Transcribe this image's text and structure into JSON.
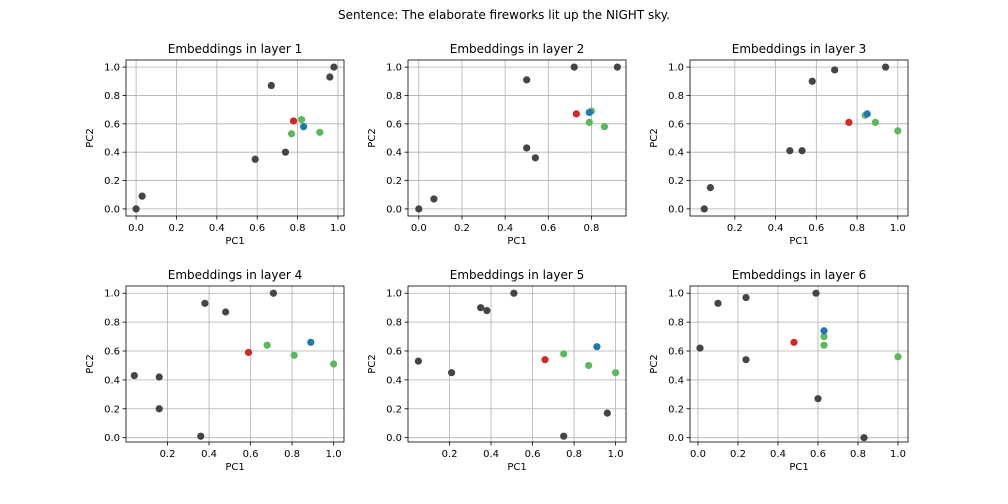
{
  "suptitle": "Sentence: The elaborate fireworks lit up the NIGHT sky.",
  "colors": {
    "gray": "#454545",
    "red": "#d62728",
    "blue": "#1f77b4",
    "green": "#5cb85c",
    "grid": "#b0b0b0",
    "axes": "#000000"
  },
  "chart_data": [
    {
      "type": "scatter",
      "title": "Embeddings in layer 1",
      "xlabel": "PC1",
      "ylabel": "PC2",
      "xlim": [
        -0.05,
        1.03
      ],
      "ylim": [
        -0.05,
        1.05
      ],
      "xticks": [
        "0.0",
        "0.2",
        "0.4",
        "0.6",
        "0.8",
        "1.0"
      ],
      "xtick_values": [
        0,
        0.2,
        0.4,
        0.6,
        0.8,
        1.0
      ],
      "yticks": [
        "0.0",
        "0.2",
        "0.4",
        "0.6",
        "0.8",
        "1.0"
      ],
      "ytick_values": [
        0,
        0.2,
        0.4,
        0.6,
        0.8,
        1.0
      ],
      "grid": true,
      "points": [
        {
          "x": 0.0,
          "y": 0.0,
          "color": "gray"
        },
        {
          "x": 0.03,
          "y": 0.09,
          "color": "gray"
        },
        {
          "x": 0.59,
          "y": 0.35,
          "color": "gray"
        },
        {
          "x": 0.67,
          "y": 0.87,
          "color": "gray"
        },
        {
          "x": 0.74,
          "y": 0.4,
          "color": "gray"
        },
        {
          "x": 0.96,
          "y": 0.93,
          "color": "gray"
        },
        {
          "x": 0.98,
          "y": 1.0,
          "color": "gray"
        },
        {
          "x": 0.78,
          "y": 0.62,
          "color": "red"
        },
        {
          "x": 0.77,
          "y": 0.53,
          "color": "green"
        },
        {
          "x": 0.82,
          "y": 0.63,
          "color": "green"
        },
        {
          "x": 0.91,
          "y": 0.54,
          "color": "green"
        },
        {
          "x": 0.83,
          "y": 0.58,
          "color": "blue"
        }
      ]
    },
    {
      "type": "scatter",
      "title": "Embeddings in layer 2",
      "xlabel": "PC1",
      "ylabel": "PC2",
      "xlim": [
        -0.05,
        0.96
      ],
      "ylim": [
        -0.05,
        1.05
      ],
      "xticks": [
        "0.0",
        "0.2",
        "0.4",
        "0.6",
        "0.8"
      ],
      "xtick_values": [
        0,
        0.2,
        0.4,
        0.6,
        0.8
      ],
      "yticks": [
        "0.0",
        "0.2",
        "0.4",
        "0.6",
        "0.8",
        "1.0"
      ],
      "ytick_values": [
        0,
        0.2,
        0.4,
        0.6,
        0.8,
        1.0
      ],
      "grid": true,
      "points": [
        {
          "x": 0.0,
          "y": 0.0,
          "color": "gray"
        },
        {
          "x": 0.07,
          "y": 0.07,
          "color": "gray"
        },
        {
          "x": 0.5,
          "y": 0.43,
          "color": "gray"
        },
        {
          "x": 0.54,
          "y": 0.36,
          "color": "gray"
        },
        {
          "x": 0.5,
          "y": 0.91,
          "color": "gray"
        },
        {
          "x": 0.72,
          "y": 1.0,
          "color": "gray"
        },
        {
          "x": 0.92,
          "y": 1.0,
          "color": "gray"
        },
        {
          "x": 0.73,
          "y": 0.67,
          "color": "red"
        },
        {
          "x": 0.79,
          "y": 0.61,
          "color": "green"
        },
        {
          "x": 0.86,
          "y": 0.58,
          "color": "green"
        },
        {
          "x": 0.8,
          "y": 0.69,
          "color": "green"
        },
        {
          "x": 0.79,
          "y": 0.68,
          "color": "blue"
        }
      ]
    },
    {
      "type": "scatter",
      "title": "Embeddings in layer 3",
      "xlabel": "PC1",
      "ylabel": "PC2",
      "xlim": [
        -0.02,
        1.05
      ],
      "ylim": [
        -0.05,
        1.05
      ],
      "xticks": [
        "0.2",
        "0.4",
        "0.6",
        "0.8",
        "1.0"
      ],
      "xtick_values": [
        0.2,
        0.4,
        0.6,
        0.8,
        1.0
      ],
      "yticks": [
        "0.0",
        "0.2",
        "0.4",
        "0.6",
        "0.8",
        "1.0"
      ],
      "ytick_values": [
        0,
        0.2,
        0.4,
        0.6,
        0.8,
        1.0
      ],
      "grid": true,
      "points": [
        {
          "x": 0.05,
          "y": 0.0,
          "color": "gray"
        },
        {
          "x": 0.08,
          "y": 0.15,
          "color": "gray"
        },
        {
          "x": 0.47,
          "y": 0.41,
          "color": "gray"
        },
        {
          "x": 0.53,
          "y": 0.41,
          "color": "gray"
        },
        {
          "x": 0.58,
          "y": 0.9,
          "color": "gray"
        },
        {
          "x": 0.69,
          "y": 0.98,
          "color": "gray"
        },
        {
          "x": 0.94,
          "y": 1.0,
          "color": "gray"
        },
        {
          "x": 0.76,
          "y": 0.61,
          "color": "red"
        },
        {
          "x": 0.84,
          "y": 0.66,
          "color": "green"
        },
        {
          "x": 0.89,
          "y": 0.61,
          "color": "green"
        },
        {
          "x": 1.0,
          "y": 0.55,
          "color": "green"
        },
        {
          "x": 0.85,
          "y": 0.67,
          "color": "blue"
        }
      ]
    },
    {
      "type": "scatter",
      "title": "Embeddings in layer 4",
      "xlabel": "PC1",
      "ylabel": "PC2",
      "xlim": [
        0.0,
        1.05
      ],
      "ylim": [
        -0.03,
        1.05
      ],
      "xticks": [
        "0.2",
        "0.4",
        "0.6",
        "0.8",
        "1.0"
      ],
      "xtick_values": [
        0.2,
        0.4,
        0.6,
        0.8,
        1.0
      ],
      "yticks": [
        "0.0",
        "0.2",
        "0.4",
        "0.6",
        "0.8",
        "1.0"
      ],
      "ytick_values": [
        0,
        0.2,
        0.4,
        0.6,
        0.8,
        1.0
      ],
      "grid": true,
      "points": [
        {
          "x": 0.04,
          "y": 0.43,
          "color": "gray"
        },
        {
          "x": 0.16,
          "y": 0.42,
          "color": "gray"
        },
        {
          "x": 0.16,
          "y": 0.2,
          "color": "gray"
        },
        {
          "x": 0.36,
          "y": 0.01,
          "color": "gray"
        },
        {
          "x": 0.38,
          "y": 0.93,
          "color": "gray"
        },
        {
          "x": 0.48,
          "y": 0.87,
          "color": "gray"
        },
        {
          "x": 0.71,
          "y": 1.0,
          "color": "gray"
        },
        {
          "x": 0.59,
          "y": 0.59,
          "color": "red"
        },
        {
          "x": 0.68,
          "y": 0.64,
          "color": "green"
        },
        {
          "x": 0.81,
          "y": 0.57,
          "color": "green"
        },
        {
          "x": 1.0,
          "y": 0.51,
          "color": "green"
        },
        {
          "x": 0.89,
          "y": 0.66,
          "color": "blue"
        }
      ]
    },
    {
      "type": "scatter",
      "title": "Embeddings in layer 5",
      "xlabel": "PC1",
      "ylabel": "PC2",
      "xlim": [
        0.0,
        1.05
      ],
      "ylim": [
        -0.03,
        1.05
      ],
      "xticks": [
        "0.2",
        "0.4",
        "0.6",
        "0.8",
        "1.0"
      ],
      "xtick_values": [
        0.2,
        0.4,
        0.6,
        0.8,
        1.0
      ],
      "yticks": [
        "0.0",
        "0.2",
        "0.4",
        "0.6",
        "0.8",
        "1.0"
      ],
      "ytick_values": [
        0,
        0.2,
        0.4,
        0.6,
        0.8,
        1.0
      ],
      "grid": true,
      "points": [
        {
          "x": 0.05,
          "y": 0.53,
          "color": "gray"
        },
        {
          "x": 0.21,
          "y": 0.45,
          "color": "gray"
        },
        {
          "x": 0.35,
          "y": 0.9,
          "color": "gray"
        },
        {
          "x": 0.38,
          "y": 0.88,
          "color": "gray"
        },
        {
          "x": 0.51,
          "y": 1.0,
          "color": "gray"
        },
        {
          "x": 0.75,
          "y": 0.01,
          "color": "gray"
        },
        {
          "x": 0.96,
          "y": 0.17,
          "color": "gray"
        },
        {
          "x": 0.66,
          "y": 0.54,
          "color": "red"
        },
        {
          "x": 0.75,
          "y": 0.58,
          "color": "green"
        },
        {
          "x": 0.87,
          "y": 0.5,
          "color": "green"
        },
        {
          "x": 1.0,
          "y": 0.45,
          "color": "green"
        },
        {
          "x": 0.91,
          "y": 0.63,
          "color": "blue"
        }
      ]
    },
    {
      "type": "scatter",
      "title": "Embeddings in layer 6",
      "xlabel": "PC1",
      "ylabel": "PC2",
      "xlim": [
        -0.04,
        1.05
      ],
      "ylim": [
        -0.03,
        1.05
      ],
      "xticks": [
        "0.0",
        "0.2",
        "0.4",
        "0.6",
        "0.8",
        "1.0"
      ],
      "xtick_values": [
        0,
        0.2,
        0.4,
        0.6,
        0.8,
        1.0
      ],
      "yticks": [
        "0.0",
        "0.2",
        "0.4",
        "0.6",
        "0.8",
        "1.0"
      ],
      "ytick_values": [
        0,
        0.2,
        0.4,
        0.6,
        0.8,
        1.0
      ],
      "grid": true,
      "points": [
        {
          "x": 0.01,
          "y": 0.62,
          "color": "gray"
        },
        {
          "x": 0.1,
          "y": 0.93,
          "color": "gray"
        },
        {
          "x": 0.24,
          "y": 0.97,
          "color": "gray"
        },
        {
          "x": 0.24,
          "y": 0.54,
          "color": "gray"
        },
        {
          "x": 0.59,
          "y": 1.0,
          "color": "gray"
        },
        {
          "x": 0.6,
          "y": 0.27,
          "color": "gray"
        },
        {
          "x": 0.83,
          "y": 0.0,
          "color": "gray"
        },
        {
          "x": 0.48,
          "y": 0.66,
          "color": "red"
        },
        {
          "x": 0.63,
          "y": 0.7,
          "color": "green"
        },
        {
          "x": 0.63,
          "y": 0.64,
          "color": "green"
        },
        {
          "x": 1.0,
          "y": 0.56,
          "color": "green"
        },
        {
          "x": 0.63,
          "y": 0.74,
          "color": "blue"
        }
      ]
    }
  ]
}
